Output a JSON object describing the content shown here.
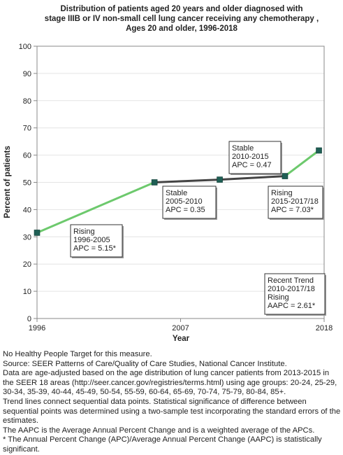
{
  "title_lines": [
    "Distribution of patients aged 20 years and older diagnosed with",
    "stage IIIB or IV non-small cell lung cancer receiving any chemotherapy ,",
    "Ages 20 and older,  1996-2018"
  ],
  "chart_data": {
    "type": "line",
    "xlabel": "Year",
    "ylabel": "Percent of patients",
    "xlim": [
      1996,
      2018
    ],
    "ylim": [
      0,
      100
    ],
    "x_ticks": [
      "1996",
      "2007",
      "2018"
    ],
    "y_ticks": [
      "0",
      "10",
      "20",
      "30",
      "40",
      "50",
      "60",
      "70",
      "80",
      "90",
      "100"
    ],
    "points": [
      {
        "x": 1996,
        "y": 31.5
      },
      {
        "x": 2005,
        "y": 50.0
      },
      {
        "x": 2010,
        "y": 51.0
      },
      {
        "x": 2015,
        "y": 52.3
      },
      {
        "x": 2017.6,
        "y": 61.7
      }
    ],
    "segments": [
      {
        "from": 0,
        "to": 1,
        "trend": "Rising",
        "color": "#6dc96d"
      },
      {
        "from": 1,
        "to": 3,
        "trend": "Stable",
        "color": "#444444"
      },
      {
        "from": 3,
        "to": 4,
        "trend": "Rising",
        "color": "#6dc96d"
      }
    ],
    "marker_color": "#1f5f55",
    "annotations": [
      {
        "lines": [
          "Rising",
          "1996-2005",
          "APC =  5.15*"
        ]
      },
      {
        "lines": [
          "Stable",
          "2005-2010",
          "APC =  0.35"
        ]
      },
      {
        "lines": [
          "Stable",
          "2010-2015",
          "APC =  0.47"
        ]
      },
      {
        "lines": [
          "Rising",
          "2015-2017/18",
          "APC =  7.03*"
        ]
      },
      {
        "lines": [
          "Recent Trend",
          "2010-2017/18",
          "Rising",
          "AAPC =  2.61*"
        ]
      }
    ]
  },
  "notes": [
    "No Healthy People Target for this measure.",
    "Source: SEER Patterns of Care/Quality of Care Studies, National Cancer Institute.",
    "Data are age-adjusted based on the age distribution of lung cancer patients from 2013-2015 in the SEER 18 areas (http://seer.cancer.gov/registries/terms.html) using age groups: 20-24, 25-29, 30-34, 35-39, 40-44, 45-49, 50-54, 55-59, 60-64, 65-69, 70-74, 75-79, 80-84, 85+.",
    "Trend lines connect sequential data points. Statistical significance of difference between sequential points was determined using a two-sample test incorporating the standard errors of the estimates.",
    "The AAPC is the Average Annual Percent Change and is a weighted average of the APCs.",
    "* The Annual Percent Change (APC)/Average Annual Percent Change (AAPC) is statistically significant."
  ]
}
